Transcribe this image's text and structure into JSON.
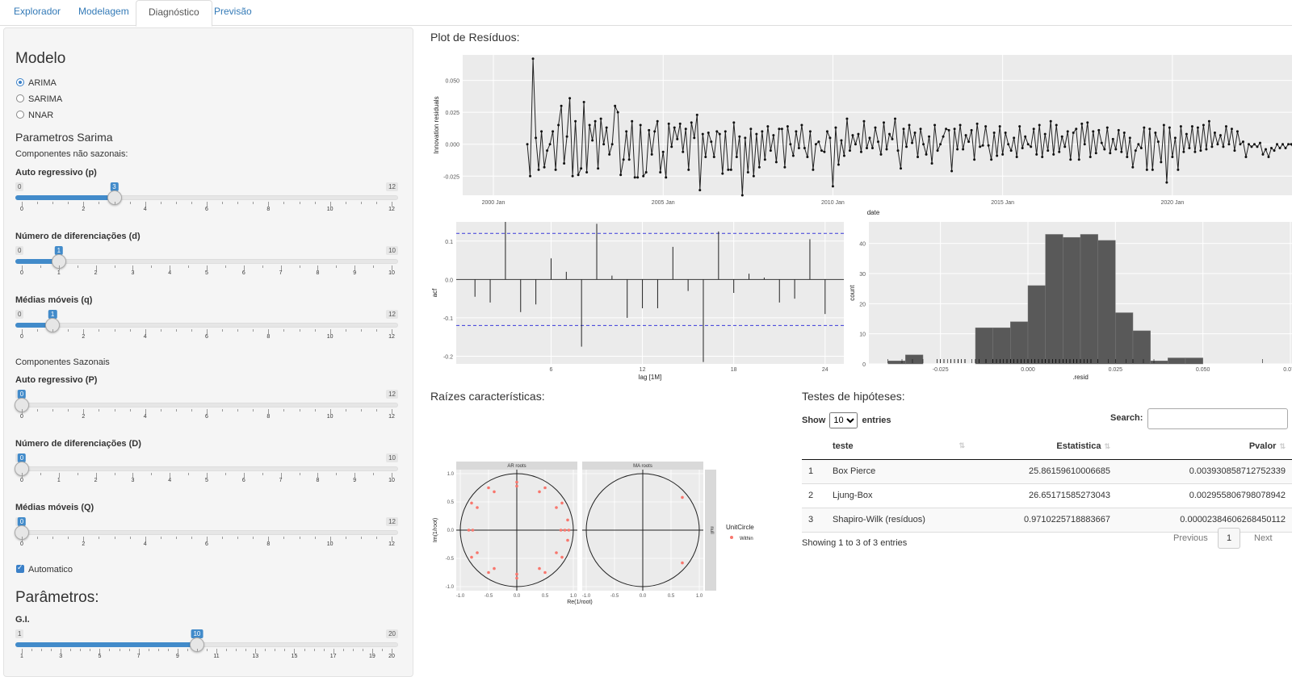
{
  "tabs": [
    "Explorador",
    "Modelagem",
    "Diagnóstico",
    "Previsão"
  ],
  "active_tab": "Diagnóstico",
  "sidebar": {
    "model_heading": "Modelo",
    "model_options": [
      "ARIMA",
      "SARIMA",
      "NNAR"
    ],
    "model_selected": "ARIMA",
    "sarima_heading": "Parametros Sarima",
    "nonseasonal_label": "Componentes não sazonais:",
    "seasonal_label": "Componentes Sazonais",
    "sliders": [
      {
        "label": "Auto regressivo (p)",
        "min": 0,
        "max": 12,
        "value": 3,
        "ticks": [
          0,
          2,
          4,
          6,
          8,
          10,
          12
        ]
      },
      {
        "label": "Número de diferenciações (d)",
        "min": 0,
        "max": 10,
        "value": 1,
        "ticks": [
          0,
          1,
          2,
          3,
          4,
          5,
          6,
          7,
          8,
          9,
          10
        ]
      },
      {
        "label": "Médias móveis (q)",
        "min": 0,
        "max": 12,
        "value": 1,
        "ticks": [
          0,
          2,
          4,
          6,
          8,
          10,
          12
        ]
      },
      {
        "label": "Auto regressivo (P)",
        "min": 0,
        "max": 12,
        "value": 0,
        "ticks": [
          0,
          2,
          4,
          6,
          8,
          10,
          12
        ]
      },
      {
        "label": "Número de diferenciações (D)",
        "min": 0,
        "max": 10,
        "value": 0,
        "ticks": [
          0,
          1,
          2,
          3,
          4,
          5,
          6,
          7,
          8,
          9,
          10
        ]
      },
      {
        "label": "Médias móveis (Q)",
        "min": 0,
        "max": 12,
        "value": 0,
        "ticks": [
          0,
          2,
          4,
          6,
          8,
          10,
          12
        ]
      },
      {
        "label": "G.I.",
        "min": 1,
        "max": 20,
        "value": 10,
        "ticks": [
          1,
          3,
          5,
          7,
          9,
          11,
          13,
          15,
          17,
          19,
          20
        ]
      }
    ],
    "automatic_label": "Automatico",
    "automatic_checked": true,
    "params_heading": "Parâmetros:"
  },
  "residuals_title": "Plot de Resíduos:",
  "roots_title": "Raízes características:",
  "tests_title": "Testes de hipóteses:",
  "chart_data": [
    {
      "type": "line",
      "ylabel": "Innovation residuals",
      "xlabel": "date",
      "x_ticks": [
        "2000 Jan",
        "2005 Jan",
        "2010 Jan",
        "2015 Jan",
        "2020 Jan"
      ],
      "y_ticks": [
        -0.025,
        0.0,
        0.025,
        0.05
      ],
      "ylim": [
        -0.04,
        0.07
      ],
      "start": "2001 Jan",
      "values": [
        0.0,
        -0.025,
        0.067,
        0.005,
        -0.02,
        0.01,
        -0.018,
        -0.005,
        0.0,
        0.01,
        -0.02,
        0.015,
        0.03,
        -0.015,
        0.006,
        0.036,
        -0.025,
        0.018,
        -0.024,
        -0.019,
        0.033,
        -0.022,
        0.015,
        0.003,
        0.018,
        -0.019,
        0.02,
        0.0,
        0.013,
        -0.008,
        0.0,
        0.03,
        0.025,
        -0.024,
        -0.012,
        0.01,
        -0.012,
        0.018,
        -0.026,
        -0.026,
        0.015,
        -0.025,
        -0.022,
        0.011,
        -0.008,
        0.01,
        0.018,
        -0.022,
        -0.006,
        -0.026,
        0.016,
        -0.002,
        0.013,
        0.004,
        0.016,
        -0.006,
        0.012,
        -0.02,
        0.017,
        0.005,
        0.023,
        -0.036,
        0.008,
        -0.01,
        0.009,
        0.002,
        -0.01,
        0.01,
        0.008,
        -0.023,
        0.01,
        -0.02,
        -0.02,
        0.017,
        -0.01,
        0.006,
        -0.04,
        0.005,
        -0.022,
        0.012,
        -0.025,
        0.008,
        -0.018,
        0.01,
        -0.012,
        0.014,
        -0.005,
        0.007,
        -0.014,
        0.012,
        0.012,
        -0.018,
        0.014,
        0.0,
        -0.009,
        0.01,
        -0.003,
        0.015,
        -0.003,
        -0.01,
        0.01,
        -0.02,
        0.0,
        0.002,
        -0.005,
        -0.006,
        0.01,
        0.005,
        -0.033,
        0.013,
        -0.016,
        0.003,
        -0.009,
        0.02,
        -0.005,
        0.007,
        0.0,
        0.008,
        -0.006,
        0.018,
        -0.003,
        0.005,
        -0.003,
        0.013,
        0.002,
        -0.008,
        0.017,
        -0.004,
        0.008,
        0.004,
        0.02,
        -0.005,
        -0.019,
        0.012,
        -0.002,
        0.015,
        0.001,
        0.009,
        -0.01,
        0.012,
        0.0,
        -0.008,
        0.006,
        -0.015,
        0.015,
        -0.005,
        0.0,
        0.006,
        0.012,
        0.011,
        -0.021,
        0.012,
        -0.004,
        0.015,
        -0.004,
        0.007,
        0.002,
        0.011,
        -0.012,
        0.016,
        -0.002,
        -0.001,
        0.014,
        -0.001,
        -0.012,
        0.009,
        -0.009,
        0.014,
        -0.008,
        0.009,
        0.0,
        -0.005,
        0.005,
        -0.01,
        0.014,
        -0.003,
        0.006,
        0.0,
        -0.002,
        0.012,
        -0.008,
        0.015,
        -0.01,
        0.008,
        -0.005,
        0.018,
        -0.008,
        0.015,
        -0.006,
        0.006,
        -0.002,
        0.01,
        -0.012,
        0.009,
        0.012,
        -0.012,
        0.016,
        0.0,
        0.017,
        -0.01,
        0.01,
        -0.007,
        0.011,
        0.001,
        -0.004,
        0.013,
        -0.007,
        0.004,
        -0.004,
        0.011,
        -0.006,
        0.009,
        -0.01,
        0.005,
        -0.018,
        -0.005,
        0.0,
        -0.003,
        0.013,
        -0.02,
        0.012,
        -0.02,
        0.009,
        0.002,
        -0.014,
        0.015,
        -0.03,
        0.013,
        -0.01,
        0.005,
        -0.02,
        0.014,
        -0.006,
        0.008,
        -0.003,
        0.014,
        -0.006,
        0.013,
        -0.005,
        0.015,
        -0.004,
        0.018,
        -0.002,
        0.009,
        0.0,
        0.007,
        -0.002,
        0.014,
        0.0,
        0.012,
        -0.005,
        0.01,
        0.0,
        0.002,
        -0.01,
        0.0,
        -0.002,
        0.0,
        -0.002,
        0.001,
        -0.008,
        -0.004,
        -0.01,
        -0.003,
        -0.005,
        0.0,
        -0.003,
        0.0,
        -0.003,
        0.0,
        0.0,
        -0.004,
        0.002,
        0.001,
        -0.014,
        0.005,
        0.002,
        0.007,
        -0.007,
        0.012,
        0.003,
        0.008,
        0.006,
        0.005,
        0.006,
        0.012,
        0.004,
        0.01,
        0.028,
        0.004,
        0.0,
        0.005,
        0.018,
        -0.01,
        0.014,
        0.008,
        -0.018,
        0.0,
        0.004,
        -0.015,
        -0.018,
        -0.021,
        0.01
      ]
    },
    {
      "type": "bar",
      "ylabel": "acf",
      "xlabel": "lag [1M]",
      "x_ticks": [
        6,
        12,
        18,
        24
      ],
      "y_ticks": [
        -0.2,
        -0.1,
        0.0,
        0.1
      ],
      "ylim": [
        -0.22,
        0.15
      ],
      "bounds": [
        0.12,
        -0.12
      ],
      "lags": [
        1,
        2,
        3,
        4,
        5,
        6,
        7,
        8,
        9,
        10,
        11,
        12,
        13,
        14,
        15,
        16,
        17,
        18,
        19,
        20,
        21,
        22,
        23,
        24
      ],
      "values": [
        -0.045,
        -0.06,
        0.15,
        -0.085,
        -0.065,
        0.055,
        0.02,
        -0.175,
        0.145,
        0.01,
        -0.1,
        -0.075,
        -0.075,
        0.085,
        -0.03,
        -0.215,
        0.125,
        -0.035,
        0.015,
        0.005,
        -0.06,
        -0.05,
        0.105,
        -0.09
      ]
    },
    {
      "type": "bar",
      "ylabel": "count",
      "xlabel": ".resid",
      "x_ticks": [
        -0.025,
        0.0,
        0.025,
        0.05,
        0.075
      ],
      "y_ticks": [
        0,
        10,
        20,
        30,
        40
      ],
      "ylim": [
        0,
        45
      ],
      "bin_start": -0.04,
      "bin_width": 0.005,
      "counts": [
        1,
        3,
        0,
        0,
        0,
        12,
        12,
        14,
        26,
        43,
        42,
        43,
        41,
        17,
        11,
        1,
        2,
        2,
        0,
        0,
        0,
        0,
        0,
        0,
        0,
        0,
        0,
        0,
        0,
        0,
        0,
        0,
        0,
        0,
        0,
        0,
        0,
        0,
        0,
        0,
        0,
        0,
        0,
        0,
        0,
        0,
        0,
        0,
        0,
        0,
        0,
        0,
        0,
        0,
        0,
        0,
        0,
        0,
        0,
        0,
        0,
        0,
        0,
        0,
        0,
        1
      ],
      "counts_note": ""
    },
    {
      "type": "scatter",
      "panels": [
        "AR roots",
        "MA roots"
      ],
      "xlabel": "Re(1/root)",
      "ylabel": "Im(1/root)",
      "x_ticks": [
        -1.0,
        -0.5,
        0.0,
        0.5,
        1.0
      ],
      "y_ticks": [
        -1.0,
        -0.5,
        0.0,
        0.5,
        1.0
      ],
      "strip_label": "null",
      "legend_title": "UnitCircle",
      "legend_item": "Within",
      "ar_roots": [
        [
          0.0,
          0.85
        ],
        [
          0.0,
          -0.85
        ],
        [
          0.0,
          0.78
        ],
        [
          0.0,
          -0.78
        ],
        [
          -0.5,
          0.75
        ],
        [
          -0.5,
          -0.75
        ],
        [
          0.5,
          0.75
        ],
        [
          0.5,
          -0.75
        ],
        [
          -0.4,
          0.68
        ],
        [
          -0.4,
          -0.68
        ],
        [
          0.4,
          0.68
        ],
        [
          0.4,
          -0.68
        ],
        [
          -0.8,
          0.48
        ],
        [
          -0.8,
          -0.48
        ],
        [
          0.8,
          0.48
        ],
        [
          0.8,
          -0.48
        ],
        [
          -0.7,
          0.4
        ],
        [
          -0.7,
          -0.4
        ],
        [
          0.7,
          0.4
        ],
        [
          0.7,
          -0.4
        ],
        [
          -0.85,
          0.0
        ],
        [
          -0.78,
          0.0
        ],
        [
          0.85,
          0.0
        ],
        [
          0.78,
          0.0
        ],
        [
          0.92,
          0.0
        ],
        [
          0.9,
          0.18
        ],
        [
          0.9,
          -0.18
        ]
      ],
      "ma_roots": [
        [
          0.7,
          0.58
        ],
        [
          0.7,
          -0.58
        ]
      ]
    }
  ],
  "table": {
    "show_label_pre": "Show",
    "show_value": "10",
    "show_label_post": "entries",
    "search_label": "Search:",
    "headers": [
      "",
      "teste",
      "Estatistica",
      "Pvalor"
    ],
    "rows": [
      [
        "1",
        "Box Pierce",
        "25.86159610006685",
        "0.003930858712752339"
      ],
      [
        "2",
        "Ljung-Box",
        "26.65171585273043",
        "0.002955806798078942"
      ],
      [
        "3",
        "Shapiro-Wilk (resíduos)",
        "0.9710225718883667",
        "0.0000238460626845011​2"
      ]
    ],
    "info": "Showing 1 to 3 of 3 entries",
    "prev": "Previous",
    "page": "1",
    "next": "Next"
  }
}
